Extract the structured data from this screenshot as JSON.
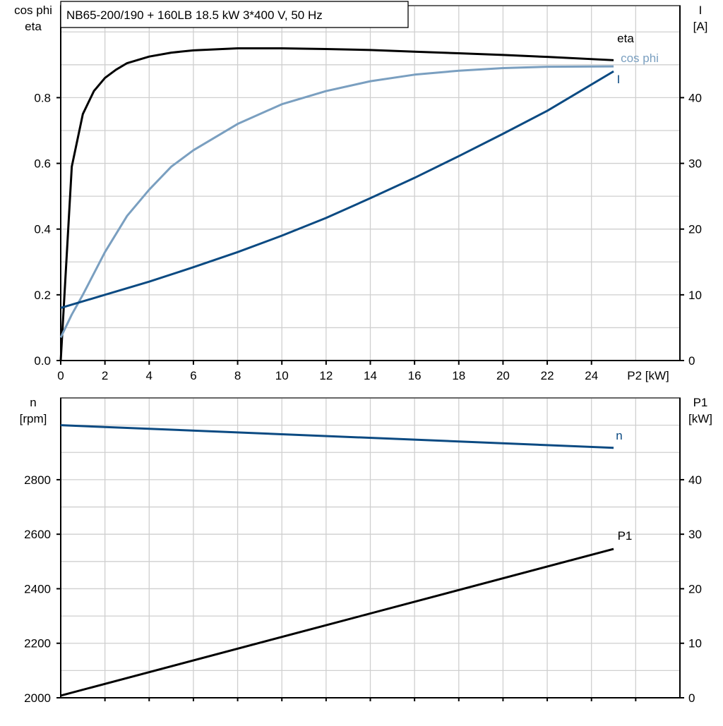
{
  "title": "NB65-200/190 + 160LB   18.5 kW   3*400 V, 50 Hz",
  "colors": {
    "eta": "#000000",
    "cos_phi": "#7a9fc0",
    "I": "#0b4a82",
    "n": "#0b4a82",
    "P1": "#000000",
    "grid": "#cfcfcf"
  },
  "chart_data": [
    {
      "type": "line",
      "xlabel": "P2 [kW]",
      "ylabel_left": [
        "cos phi",
        "eta"
      ],
      "ylabel_right": [
        "I",
        "[A]"
      ],
      "xlim": [
        0,
        28
      ],
      "ylim_left": [
        0,
        1.08
      ],
      "ylim_right": [
        0,
        54
      ],
      "xticks": [
        0,
        2,
        4,
        6,
        8,
        10,
        12,
        14,
        16,
        18,
        20,
        22,
        24
      ],
      "xtick_labels": [
        "0",
        "2",
        "4",
        "6",
        "8",
        "10",
        "12",
        "14",
        "16",
        "18",
        "20",
        "22",
        "24"
      ],
      "yticks_left": [
        0,
        0.2,
        0.4,
        0.6,
        0.8
      ],
      "ytick_labels_left": [
        "0.0",
        "0.2",
        "0.4",
        "0.6",
        "0.8"
      ],
      "yticks_right": [
        0,
        10,
        20,
        30,
        40
      ],
      "ytick_labels_right": [
        "0",
        "10",
        "20",
        "30",
        "40"
      ],
      "grid": true,
      "series": [
        {
          "name": "eta",
          "axis": "left",
          "color": "#000000",
          "x": [
            0,
            0.5,
            1,
            1.5,
            2,
            2.5,
            3,
            4,
            5,
            6,
            8,
            10,
            12,
            14,
            16,
            18,
            20,
            22,
            25
          ],
          "y": [
            0,
            0.59,
            0.75,
            0.82,
            0.86,
            0.885,
            0.905,
            0.925,
            0.937,
            0.944,
            0.95,
            0.95,
            0.948,
            0.945,
            0.94,
            0.935,
            0.93,
            0.924,
            0.914
          ]
        },
        {
          "name": "cos phi",
          "axis": "left",
          "color": "#7a9fc0",
          "x": [
            0,
            0.5,
            1,
            2,
            3,
            4,
            5,
            6,
            8,
            10,
            12,
            14,
            16,
            18,
            20,
            22,
            25
          ],
          "y": [
            0.07,
            0.14,
            0.2,
            0.33,
            0.44,
            0.52,
            0.59,
            0.64,
            0.72,
            0.78,
            0.82,
            0.85,
            0.87,
            0.882,
            0.89,
            0.894,
            0.895
          ]
        },
        {
          "name": "I",
          "axis": "right",
          "color": "#0b4a82",
          "x": [
            0,
            2,
            4,
            6,
            8,
            10,
            12,
            14,
            16,
            18,
            20,
            22,
            25
          ],
          "y": [
            8,
            10,
            12,
            14.2,
            16.5,
            19,
            21.7,
            24.7,
            27.8,
            31.1,
            34.5,
            38,
            44
          ]
        }
      ]
    },
    {
      "type": "line",
      "ylabel_left": [
        "n",
        "[rpm]"
      ],
      "ylabel_right": [
        "P1",
        "[kW]"
      ],
      "xlim": [
        0,
        28
      ],
      "ylim_left": [
        2000,
        3100
      ],
      "ylim_right": [
        0,
        55
      ],
      "yticks_left": [
        2000,
        2200,
        2400,
        2600,
        2800
      ],
      "ytick_labels_left": [
        "2000",
        "2200",
        "2400",
        "2600",
        "2800"
      ],
      "yticks_right": [
        0,
        10,
        20,
        30,
        40
      ],
      "ytick_labels_right": [
        "0",
        "10",
        "20",
        "30",
        "40"
      ],
      "grid": true,
      "series": [
        {
          "name": "n",
          "axis": "left",
          "color": "#0b4a82",
          "x": [
            0,
            25
          ],
          "y": [
            3000,
            2917
          ]
        },
        {
          "name": "P1",
          "axis": "right",
          "color": "#000000",
          "x": [
            0,
            25
          ],
          "y": [
            0.4,
            27.3
          ]
        }
      ]
    }
  ]
}
